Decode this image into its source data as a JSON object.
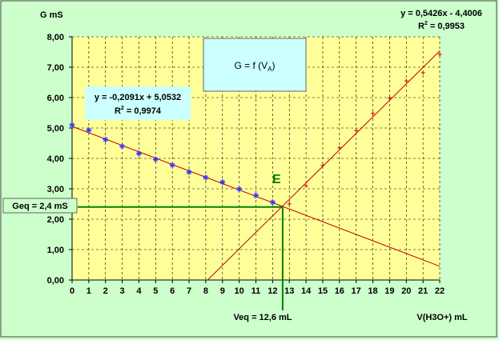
{
  "chart_data": {
    "type": "scatter",
    "title": "G = f (V",
    "title_subscript": "A",
    "title_suffix": ")",
    "ylabel": "G mS",
    "xlabel": "V(H3O+) mL",
    "xlim": [
      0,
      22
    ],
    "ylim": [
      0,
      8
    ],
    "x_ticks": [
      "0",
      "1",
      "2",
      "3",
      "4",
      "5",
      "6",
      "7",
      "8",
      "9",
      "10",
      "11",
      "12",
      "13",
      "14",
      "15",
      "16",
      "17",
      "18",
      "19",
      "20",
      "21",
      "22"
    ],
    "y_ticks": [
      "0,00",
      "1,00",
      "2,00",
      "3,00",
      "4,00",
      "5,00",
      "6,00",
      "7,00",
      "8,00"
    ],
    "grid": true,
    "series": [
      {
        "x": [
          0,
          1,
          2,
          3,
          4,
          5,
          6,
          7,
          8,
          9,
          10,
          11,
          12
        ],
        "values": [
          5.1,
          4.93,
          4.62,
          4.4,
          4.16,
          3.97,
          3.78,
          3.55,
          3.37,
          3.22,
          2.99,
          2.78,
          2.56
        ],
        "color": "#3333ff",
        "trendline": {
          "slope": -0.2091,
          "intercept": 5.0532,
          "color": "#cc0000"
        }
      },
      {
        "x": [
          13,
          14,
          15,
          16,
          17,
          18,
          19,
          20,
          21,
          22
        ],
        "values": [
          2.5,
          3.1,
          3.77,
          4.35,
          4.92,
          5.48,
          5.98,
          6.55,
          6.82,
          7.42
        ],
        "color": "#cc0000",
        "trendline": {
          "slope": 0.5426,
          "intercept": -4.4006,
          "color": "#cc0000"
        }
      }
    ],
    "equivalence": {
      "x": 12.6,
      "y": 2.4,
      "label": "E",
      "color": "#008000"
    },
    "annotations": {
      "eq1_line1": "y = -0,2091x + 5,0532",
      "eq1_r2_prefix": "R",
      "eq1_r2_sup": "2",
      "eq1_r2_value": " = 0,9974",
      "eq2_line1": "y = 0,5426x - 4,4006",
      "eq2_r2_prefix": "R",
      "eq2_r2_sup": "2",
      "eq2_r2_value": " = 0,9953",
      "geq": "Geq = 2,4 mS",
      "veq": "Veq = 12,6 mL"
    },
    "colors": {
      "plot_background": "#ffff99",
      "outer_background": "#ccffcc",
      "label_box": "#ccffff",
      "grid": "#000000",
      "guide": "#008000"
    }
  }
}
